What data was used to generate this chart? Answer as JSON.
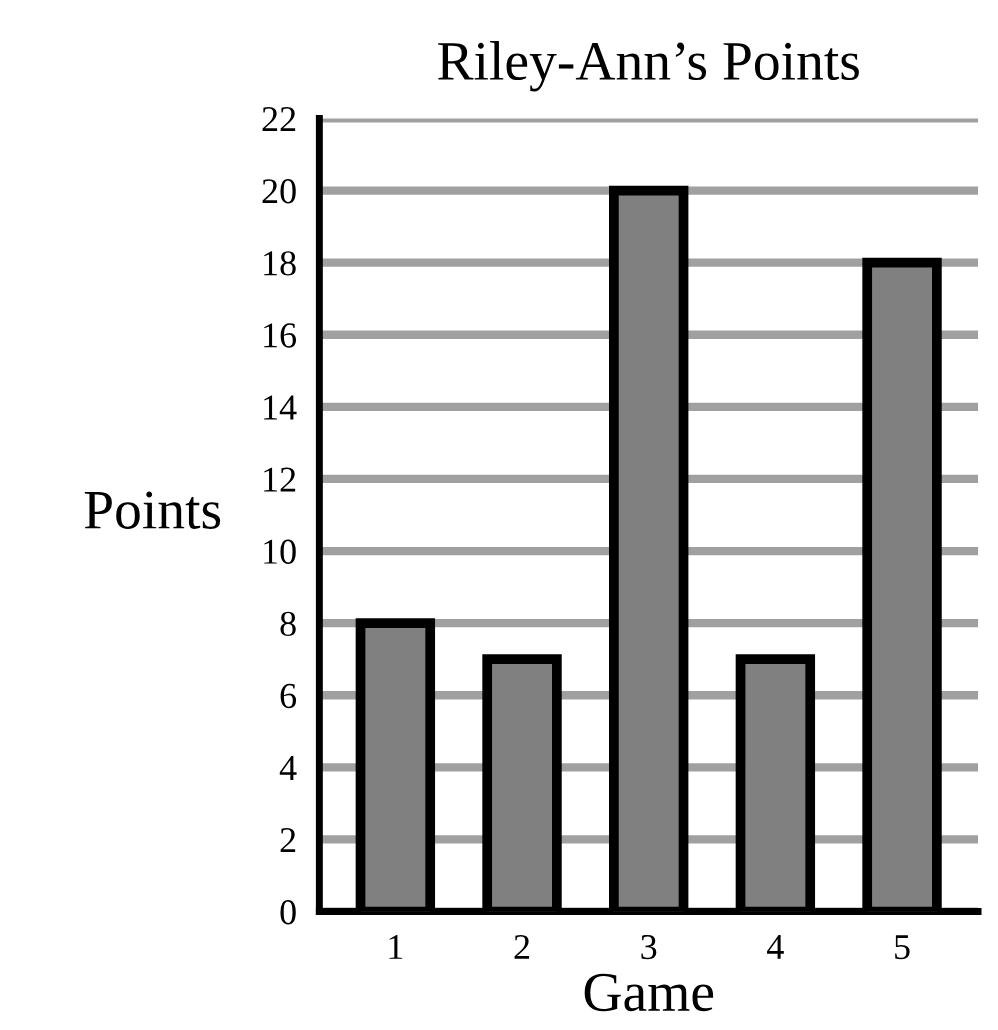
{
  "chart_data": {
    "type": "bar",
    "title": "Riley-Ann’s Points",
    "xlabel": "Game",
    "ylabel": "Points",
    "categories": [
      "1",
      "2",
      "3",
      "4",
      "5"
    ],
    "values": [
      8,
      7,
      20,
      7,
      18
    ],
    "color": "#808080",
    "ylim": [
      0,
      22
    ],
    "yticks": [
      0,
      2,
      4,
      6,
      8,
      10,
      12,
      14,
      16,
      18,
      20,
      22
    ],
    "grid": "y",
    "legend": false
  }
}
